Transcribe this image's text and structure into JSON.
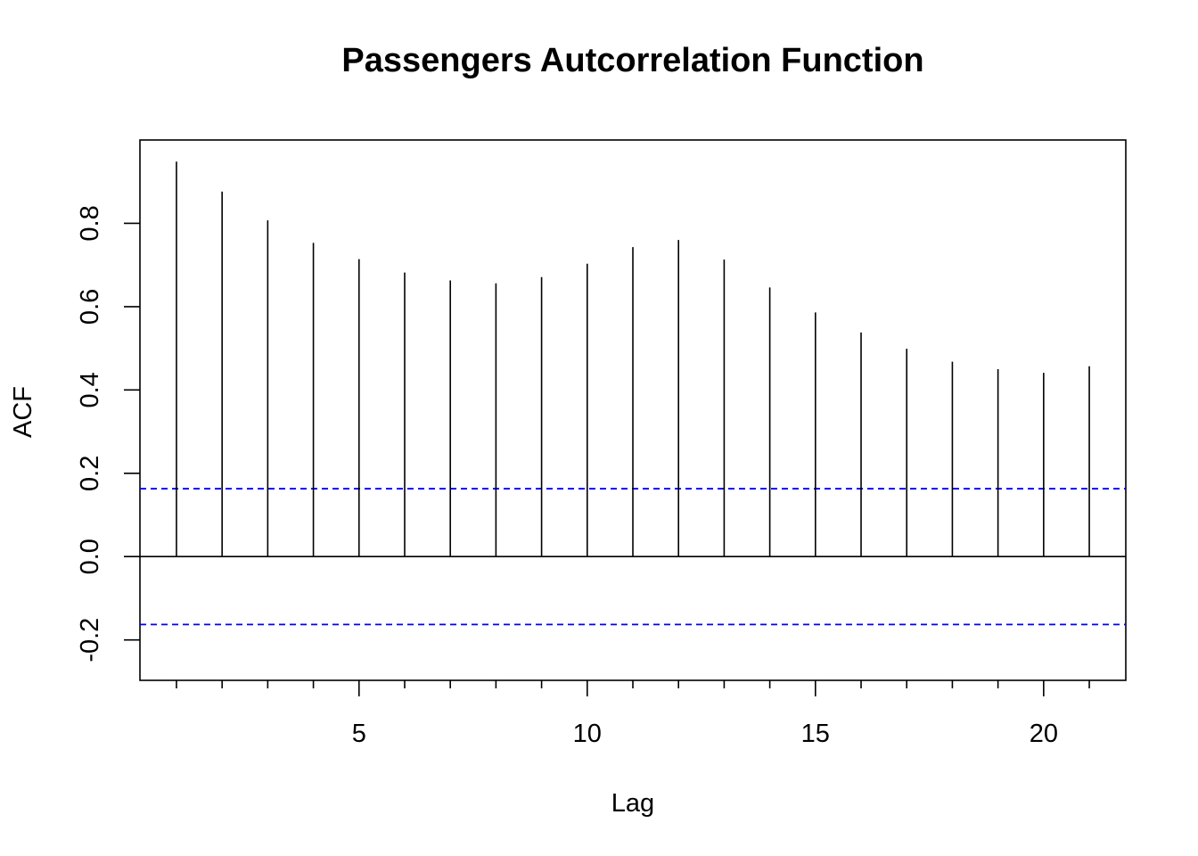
{
  "chart_data": {
    "type": "bar",
    "title": "Passengers Autcorrelation Function",
    "xlabel": "Lag",
    "ylabel": "ACF",
    "x": [
      1,
      2,
      3,
      4,
      5,
      6,
      7,
      8,
      9,
      10,
      11,
      12,
      13,
      14,
      15,
      16,
      17,
      18,
      19,
      20,
      21
    ],
    "values": [
      0.948,
      0.876,
      0.807,
      0.753,
      0.714,
      0.682,
      0.663,
      0.656,
      0.671,
      0.703,
      0.743,
      0.76,
      0.713,
      0.646,
      0.586,
      0.538,
      0.499,
      0.468,
      0.45,
      0.441,
      0.457
    ],
    "confidence_bound": 0.163,
    "xlim": [
      0.2,
      21.8
    ],
    "ylim": [
      -0.297,
      1.0
    ],
    "x_ticks": [
      5,
      10,
      15,
      20
    ],
    "x_ticks_minor": [
      1,
      2,
      3,
      4,
      5,
      6,
      7,
      8,
      9,
      10,
      11,
      12,
      13,
      14,
      15,
      16,
      17,
      18,
      19,
      20,
      21
    ],
    "y_ticks": [
      -0.2,
      0.0,
      0.2,
      0.4,
      0.6,
      0.8
    ],
    "y_tick_labels": [
      "-0.2",
      "0.0",
      "0.2",
      "0.4",
      "0.6",
      "0.8"
    ],
    "x_tick_labels": [
      "5",
      "10",
      "15",
      "20"
    ],
    "grid": false,
    "colors": {
      "bars": "#000000",
      "confidence_lines": "#0000ff",
      "zero_line": "#000000"
    }
  }
}
